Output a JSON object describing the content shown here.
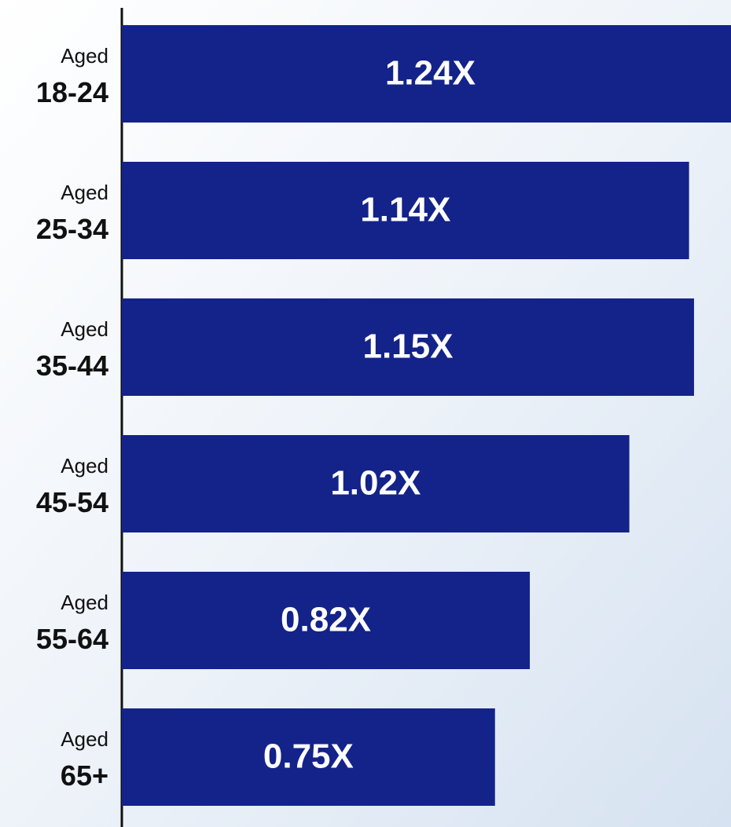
{
  "chart_data": {
    "type": "bar",
    "orientation": "horizontal",
    "categories": [
      "Aged 18-24",
      "Aged 25-34",
      "Aged 35-44",
      "Aged 45-54",
      "Aged 55-64",
      "Aged 65+"
    ],
    "values": [
      1.24,
      1.14,
      1.15,
      1.02,
      0.82,
      0.75
    ],
    "value_labels": [
      "1.24X",
      "1.14X",
      "1.15X",
      "1.02X",
      "0.82X",
      "0.75X"
    ],
    "color": "#13238a"
  }
}
